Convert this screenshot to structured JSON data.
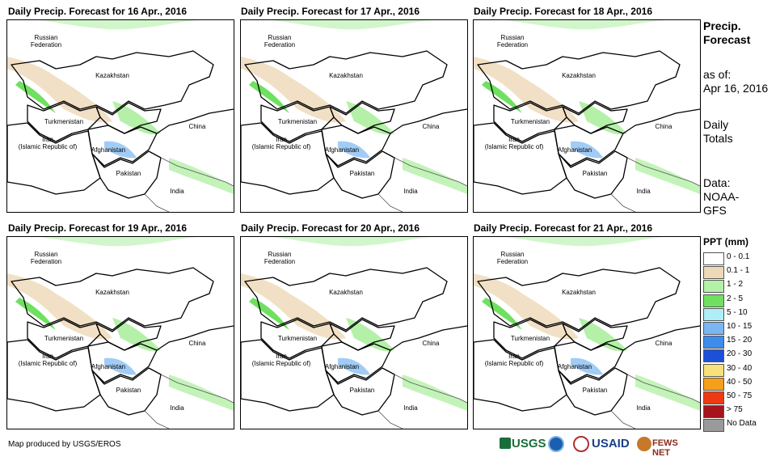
{
  "panels": [
    {
      "title": "Daily Precip. Forecast for 16 Apr., 2016"
    },
    {
      "title": "Daily Precip. Forecast for 17 Apr., 2016"
    },
    {
      "title": "Daily Precip. Forecast for 18 Apr., 2016"
    },
    {
      "title": "Daily Precip. Forecast for 19 Apr., 2016"
    },
    {
      "title": "Daily Precip. Forecast for 20 Apr., 2016"
    },
    {
      "title": "Daily Precip. Forecast for 21 Apr., 2016"
    }
  ],
  "map_labels": {
    "russia_1": "Russian",
    "russia_2": "Federation",
    "kazakhstan": "Kazakhstan",
    "turkmenistan": "Turkmenistan",
    "china": "China",
    "iran_1": "Iran",
    "iran_2": "(Islamic Republic of)",
    "afghanistan": "Afghanistan",
    "pakistan": "Pakistan",
    "india": "India"
  },
  "side": {
    "heading_1": "Precip.",
    "heading_2": "Forecast",
    "asof_1": "as of:",
    "asof_2": "Apr 16, 2016",
    "totals_1": "Daily",
    "totals_2": "Totals",
    "data_1": "Data:",
    "data_2": "NOAA-",
    "data_3": "GFS"
  },
  "legend": {
    "title": "PPT (mm)",
    "items": [
      {
        "label": "0 - 0.1",
        "color": "#ffffff"
      },
      {
        "label": "0.1 - 1",
        "color": "#edd8b7"
      },
      {
        "label": "1 - 2",
        "color": "#b4f0a8"
      },
      {
        "label": "2 - 5",
        "color": "#6fe05f"
      },
      {
        "label": "5 - 10",
        "color": "#aeeef6"
      },
      {
        "label": "10 - 15",
        "color": "#79b6f2"
      },
      {
        "label": "15 - 20",
        "color": "#3f8cee"
      },
      {
        "label": "20 - 30",
        "color": "#1c50d8"
      },
      {
        "label": "30 - 40",
        "color": "#f8e07a"
      },
      {
        "label": "40 - 50",
        "color": "#f5a018"
      },
      {
        "label": "50 - 75",
        "color": "#ee3a10"
      },
      {
        "label": "> 75",
        "color": "#a8141c"
      },
      {
        "label": "No Data",
        "color": "#9a9a9a"
      }
    ]
  },
  "footer": {
    "credit": "Map produced by USGS/EROS"
  },
  "logos": {
    "usgs": "USGS",
    "usaid": "USAID",
    "fewsnet": "FEWS NET"
  }
}
